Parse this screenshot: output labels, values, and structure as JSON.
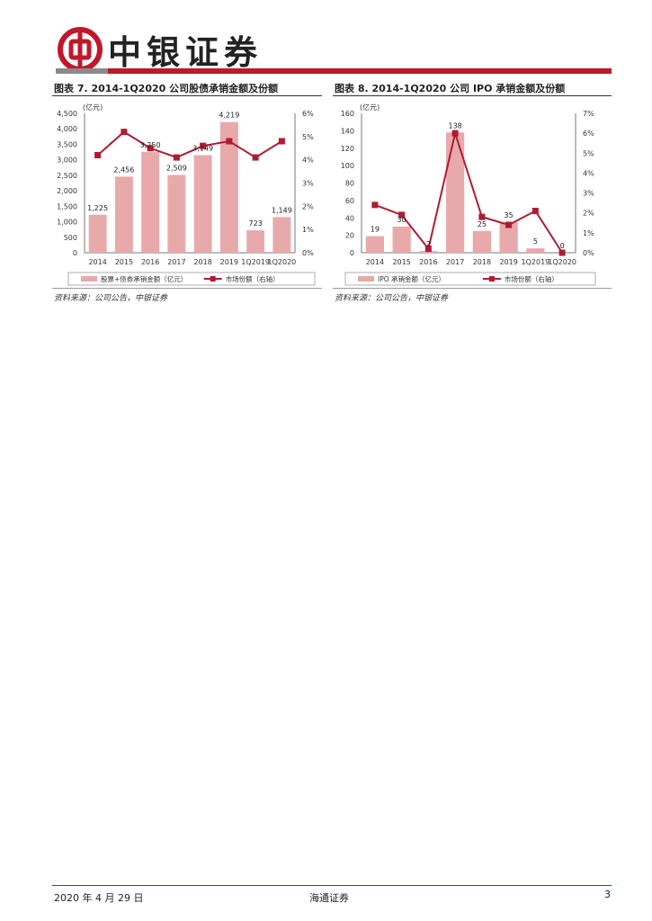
{
  "header": {
    "brand": "中银证券",
    "colors": {
      "brand_red": "#c0182b",
      "bar_pink": "#e8a9ab",
      "line_red": "#b01b34"
    }
  },
  "figures": [
    {
      "title": "图表 7. 2014-1Q2020 公司股债承销金额及份额",
      "source": "资料来源：公司公告，中银证券",
      "legend_bar": "股票+债券承销金额（亿元）",
      "legend_line": "市场份额（右轴）"
    },
    {
      "title": "图表 8. 2014-1Q2020 公司 IPO 承销金额及份额",
      "source": "资料来源：公司公告，中银证券",
      "legend_bar": "IPO 承销金额（亿元）",
      "legend_line": "市场份额（右轴）"
    }
  ],
  "chart_data": [
    {
      "type": "bar",
      "categories": [
        "2014",
        "2015",
        "2016",
        "2017",
        "2018",
        "2019",
        "1Q2019",
        "1Q2020"
      ],
      "series": [
        {
          "name": "股票+债券承销金额（亿元）",
          "type": "bar",
          "axis": "left",
          "values": [
            1225,
            2456,
            3250,
            2509,
            3149,
            4219,
            723,
            1149
          ],
          "labels": [
            "1,225",
            "2,456",
            "3,250",
            "2,509",
            "3,149",
            "4,219",
            "723",
            "1,149"
          ]
        },
        {
          "name": "市场份额（右轴）",
          "type": "line",
          "axis": "right",
          "values": [
            4.2,
            5.2,
            4.5,
            4.1,
            4.6,
            4.8,
            4.1,
            4.8
          ]
        }
      ],
      "ylabel": "(亿元)",
      "ylim": [
        0,
        4500
      ],
      "yticks": [
        "0",
        "500",
        "1,000",
        "1,500",
        "2,000",
        "2,500",
        "3,000",
        "3,500",
        "4,000",
        "4,500"
      ],
      "y2lim": [
        0,
        6
      ],
      "y2ticks": [
        "0%",
        "1%",
        "2%",
        "3%",
        "4%",
        "5%",
        "6%"
      ],
      "legend_position": "bottom"
    },
    {
      "type": "bar",
      "categories": [
        "2014",
        "2015",
        "2016",
        "2017",
        "2018",
        "2019",
        "1Q2019",
        "1Q2020"
      ],
      "series": [
        {
          "name": "IPO 承销金额（亿元）",
          "type": "bar",
          "axis": "left",
          "values": [
            19,
            30,
            2,
            138,
            25,
            35,
            5,
            0
          ],
          "labels": [
            "19",
            "30",
            "2",
            "138",
            "25",
            "35",
            "5",
            "0"
          ]
        },
        {
          "name": "市场份额（右轴）",
          "type": "line",
          "axis": "right",
          "values": [
            2.4,
            1.9,
            0.2,
            6.0,
            1.8,
            1.4,
            2.1,
            0.0
          ]
        }
      ],
      "ylabel": "(亿元)",
      "ylim": [
        0,
        160
      ],
      "yticks": [
        "0",
        "20",
        "40",
        "60",
        "80",
        "100",
        "120",
        "140",
        "160"
      ],
      "y2lim": [
        0,
        7
      ],
      "y2ticks": [
        "0%",
        "1%",
        "2%",
        "3%",
        "4%",
        "5%",
        "6%",
        "7%"
      ],
      "legend_position": "bottom"
    }
  ],
  "footer": {
    "date": "2020 年 4 月 29 日",
    "center": "海通证券",
    "page": "3"
  }
}
